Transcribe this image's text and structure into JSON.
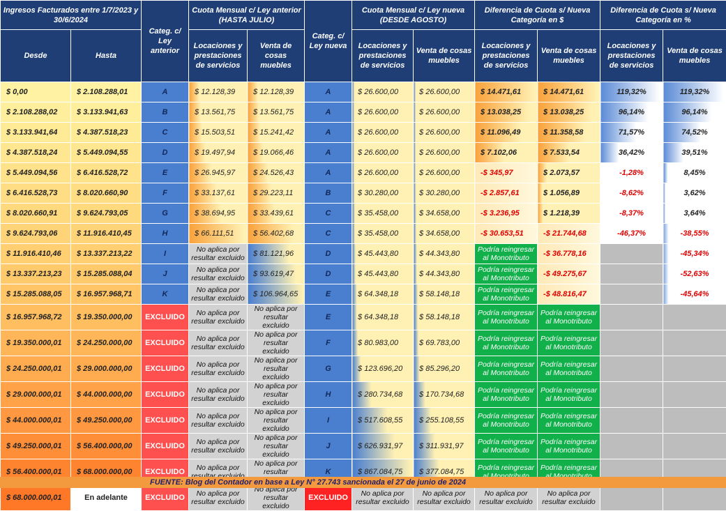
{
  "headers": {
    "ingresos": "Ingresos Facturados entre 1/7/2023 y 30/6/2024",
    "desde": "Desde",
    "hasta": "Hasta",
    "cat_anterior": "Categ. c/ Ley anterior",
    "cuota_anterior": "Cuota Mensual c/ Ley anterior (HASTA JULIO)",
    "cat_nueva": "Categ. c/ Ley nueva",
    "cuota_nueva": "Cuota Mensual c/ Ley nueva (DESDE AGOSTO)",
    "dif_pesos": "Diferencia de Cuota s/ Nueva Categoría en $",
    "dif_pct": "Diferencia de Cuota s/ Nueva Categoría en %",
    "locaciones": "Locaciones y prestaciones de servicios",
    "venta": "Venta de cosas muebles"
  },
  "labels": {
    "excluido": "EXCLUIDO",
    "no_aplica": "No aplica por resultar excluido",
    "reingresar": "Podría reingresar al Monotributo"
  },
  "rows": [
    {
      "desde": "$ 0,00",
      "hasta": "$ 2.108.288,01",
      "cat_ant": "A",
      "loc_ant": "$ 12.128,39",
      "venta_ant": "$ 12.128,39",
      "cat_new": "A",
      "loc_new": "$ 26.600,00",
      "venta_new": "$ 26.600,00",
      "dif_loc": "$ 14.471,61",
      "dif_venta": "$ 14.471,61",
      "pct_loc": "119,32%",
      "pct_venta": "119,32%"
    },
    {
      "desde": "$ 2.108.288,02",
      "hasta": "$ 3.133.941,63",
      "cat_ant": "B",
      "loc_ant": "$ 13.561,75",
      "venta_ant": "$ 13.561,75",
      "cat_new": "A",
      "loc_new": "$ 26.600,00",
      "venta_new": "$ 26.600,00",
      "dif_loc": "$ 13.038,25",
      "dif_venta": "$ 13.038,25",
      "pct_loc": "96,14%",
      "pct_venta": "96,14%"
    },
    {
      "desde": "$ 3.133.941,64",
      "hasta": "$ 4.387.518,23",
      "cat_ant": "C",
      "loc_ant": "$ 15.503,51",
      "venta_ant": "$ 15.241,42",
      "cat_new": "A",
      "loc_new": "$ 26.600,00",
      "venta_new": "$ 26.600,00",
      "dif_loc": "$ 11.096,49",
      "dif_venta": "$ 11.358,58",
      "pct_loc": "71,57%",
      "pct_venta": "74,52%"
    },
    {
      "desde": "$ 4.387.518,24",
      "hasta": "$ 5.449.094,55",
      "cat_ant": "D",
      "loc_ant": "$ 19.497,94",
      "venta_ant": "$ 19.066,46",
      "cat_new": "A",
      "loc_new": "$ 26.600,00",
      "venta_new": "$ 26.600,00",
      "dif_loc": "$ 7.102,06",
      "dif_venta": "$ 7.533,54",
      "pct_loc": "36,42%",
      "pct_venta": "39,51%"
    },
    {
      "desde": "$ 5.449.094,56",
      "hasta": "$ 6.416.528,72",
      "cat_ant": "E",
      "loc_ant": "$ 26.945,97",
      "venta_ant": "$ 24.526,43",
      "cat_new": "A",
      "loc_new": "$ 26.600,00",
      "venta_new": "$ 26.600,00",
      "dif_loc": "-$ 345,97",
      "dif_venta": "$ 2.073,57",
      "pct_loc": "-1,28%",
      "pct_venta": "8,45%"
    },
    {
      "desde": "$ 6.416.528,73",
      "hasta": "$ 8.020.660,90",
      "cat_ant": "F",
      "loc_ant": "$ 33.137,61",
      "venta_ant": "$ 29.223,11",
      "cat_new": "B",
      "loc_new": "$ 30.280,00",
      "venta_new": "$ 30.280,00",
      "dif_loc": "-$ 2.857,61",
      "dif_venta": "$ 1.056,89",
      "pct_loc": "-8,62%",
      "pct_venta": "3,62%"
    },
    {
      "desde": "$ 8.020.660,91",
      "hasta": "$ 9.624.793,05",
      "cat_ant": "G",
      "loc_ant": "$ 38.694,95",
      "venta_ant": "$ 33.439,61",
      "cat_new": "C",
      "loc_new": "$ 35.458,00",
      "venta_new": "$ 34.658,00",
      "dif_loc": "-$ 3.236,95",
      "dif_venta": "$ 1.218,39",
      "pct_loc": "-8,37%",
      "pct_venta": "3,64%"
    },
    {
      "desde": "$ 9.624.793,06",
      "hasta": "$ 11.916.410,45",
      "cat_ant": "H",
      "loc_ant": "$ 66.111,51",
      "venta_ant": "$ 56.402,68",
      "cat_new": "C",
      "loc_new": "$ 35.458,00",
      "venta_new": "$ 34.658,00",
      "dif_loc": "-$ 30.653,51",
      "dif_venta": "-$ 21.744,68",
      "pct_loc": "-46,37%",
      "pct_venta": "-38,55%"
    },
    {
      "desde": "$ 11.916.410,46",
      "hasta": "$ 13.337.213,22",
      "cat_ant": "I",
      "loc_ant": "",
      "venta_ant": "$ 81.121,96",
      "cat_new": "D",
      "loc_new": "$ 45.443,80",
      "venta_new": "$ 44.343,80",
      "dif_loc": "",
      "dif_venta": "-$ 36.778,16",
      "pct_loc": "",
      "pct_venta": "-45,34%"
    },
    {
      "desde": "$ 13.337.213,23",
      "hasta": "$ 15.285.088,04",
      "cat_ant": "J",
      "loc_ant": "",
      "venta_ant": "$ 93.619,47",
      "cat_new": "D",
      "loc_new": "$ 45.443,80",
      "venta_new": "$ 44.343,80",
      "dif_loc": "",
      "dif_venta": "-$ 49.275,67",
      "pct_loc": "",
      "pct_venta": "-52,63%"
    },
    {
      "desde": "$ 15.285.088,05",
      "hasta": "$ 16.957.968,71",
      "cat_ant": "K",
      "loc_ant": "",
      "venta_ant": "$ 106.964,65",
      "cat_new": "E",
      "loc_new": "$ 64.348,18",
      "venta_new": "$ 58.148,18",
      "dif_loc": "",
      "dif_venta": "-$ 48.816,47",
      "pct_loc": "",
      "pct_venta": "-45,64%"
    },
    {
      "desde": "$ 16.957.968,72",
      "hasta": "$ 19.350.000,00",
      "cat_new": "E",
      "loc_new": "$ 64.348,18",
      "venta_new": "$ 58.148,18"
    },
    {
      "desde": "$ 19.350.000,01",
      "hasta": "$ 24.250.000,00",
      "cat_new": "F",
      "loc_new": "$ 80.983,00",
      "venta_new": "$ 69.783,00"
    },
    {
      "desde": "$ 24.250.000,01",
      "hasta": "$ 29.000.000,00",
      "cat_new": "G",
      "loc_new": "$ 123.696,20",
      "venta_new": "$ 85.296,20"
    },
    {
      "desde": "$ 29.000.000,01",
      "hasta": "$ 44.000.000,00",
      "cat_new": "H",
      "loc_new": "$ 280.734,68",
      "venta_new": "$ 170.734,68"
    },
    {
      "desde": "$ 44.000.000,01",
      "hasta": "$ 49.250.000,00",
      "cat_new": "I",
      "loc_new": "$ 517.608,55",
      "venta_new": "$ 255.108,55"
    },
    {
      "desde": "$ 49.250.000,01",
      "hasta": "$ 56.400.000,00",
      "cat_new": "J",
      "loc_new": "$ 626.931,97",
      "venta_new": "$ 311.931,97"
    },
    {
      "desde": "$ 56.400.000,01",
      "hasta": "$ 68.000.000,00",
      "cat_new": "K",
      "loc_new": "$ 867.084,75",
      "venta_new": "$ 377.084,75"
    },
    {
      "desde": "$ 68.000.000,01",
      "hasta": "En adelante"
    }
  ],
  "footer": "FUENTE: Blog del Contador en base a Ley N° 27.743 sancionada el 27 de junio de 2024",
  "colors": {
    "header": "#1f3e76",
    "category": "#4a7fd0",
    "excluded": "#ff5050",
    "reingresar": "#11b04a",
    "not_applicable": "#d2d2d2",
    "negative": "#e00000"
  }
}
